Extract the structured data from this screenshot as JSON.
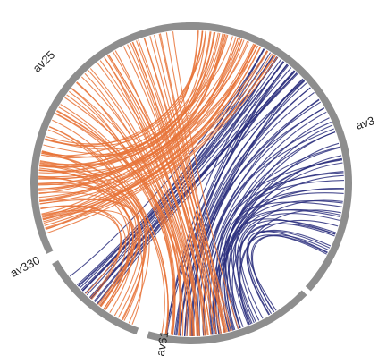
{
  "diagram": {
    "type": "chord",
    "segments": [
      {
        "id": "av3",
        "label": "av3",
        "color": "#8e8e8e"
      },
      {
        "id": "av61",
        "label": "av61",
        "color": "#8e8e8e"
      },
      {
        "id": "av330",
        "label": "av330",
        "color": "#8e8e8e"
      },
      {
        "id": "av25",
        "label": "av25",
        "color": "#8e8e8e"
      }
    ],
    "link_groups": [
      {
        "source": "av3",
        "target": "av61",
        "color": "#2c2f7e",
        "count": 60
      },
      {
        "source": "av3",
        "target": "av330",
        "color": "#2c2f7e",
        "count": 20
      },
      {
        "source": "av3",
        "target": "av25",
        "color": "#e8743a",
        "count": 45
      },
      {
        "source": "av25",
        "target": "av61",
        "color": "#e8743a",
        "count": 45
      },
      {
        "source": "av25",
        "target": "av330",
        "color": "#e8743a",
        "count": 20
      }
    ]
  }
}
